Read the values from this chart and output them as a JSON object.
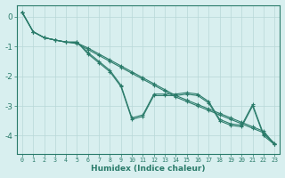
{
  "xlabel": "Humidex (Indice chaleur)",
  "ylabel": "",
  "x": [
    0,
    1,
    2,
    3,
    4,
    5,
    6,
    7,
    8,
    9,
    10,
    11,
    12,
    13,
    14,
    15,
    16,
    17,
    18,
    19,
    20,
    21,
    22,
    23
  ],
  "line1": [
    0.15,
    -0.5,
    -0.7,
    -0.78,
    -0.85,
    -0.9,
    -1.1,
    -1.3,
    -1.5,
    -1.7,
    -1.9,
    -2.1,
    -2.3,
    -2.5,
    -2.7,
    -2.85,
    -3.0,
    -3.15,
    -3.3,
    -3.45,
    -3.6,
    -3.75,
    -3.9,
    -4.3
  ],
  "line2": [
    0.15,
    -0.5,
    -0.7,
    -0.78,
    -0.85,
    -0.85,
    -1.25,
    -1.55,
    -1.85,
    -2.35,
    -3.45,
    -3.35,
    -2.65,
    -2.65,
    -2.65,
    -2.6,
    -2.65,
    -2.9,
    -3.5,
    -3.65,
    -3.7,
    -3.0,
    -4.0,
    -4.3
  ],
  "line3": [
    0.15,
    -0.5,
    -0.7,
    -0.78,
    -0.85,
    -0.85,
    -1.2,
    -1.5,
    -1.8,
    -2.3,
    -3.4,
    -3.3,
    -2.6,
    -2.6,
    -2.6,
    -2.55,
    -2.6,
    -2.85,
    -3.45,
    -3.6,
    -3.65,
    -2.95,
    -3.95,
    -4.25
  ],
  "line4": [
    0.15,
    -0.5,
    -0.7,
    -0.78,
    -0.85,
    -0.88,
    -1.05,
    -1.25,
    -1.45,
    -1.65,
    -1.85,
    -2.05,
    -2.25,
    -2.45,
    -2.65,
    -2.8,
    -2.95,
    -3.1,
    -3.25,
    -3.4,
    -3.55,
    -3.7,
    -3.85,
    -4.28
  ],
  "color": "#2a7b6a",
  "bg_color": "#d8efef",
  "grid_color": "#b8d8d8",
  "ylim": [
    -4.6,
    0.4
  ],
  "yticks": [
    0,
    -1,
    -2,
    -3,
    -4
  ],
  "xlim": [
    -0.5,
    23.5
  ]
}
